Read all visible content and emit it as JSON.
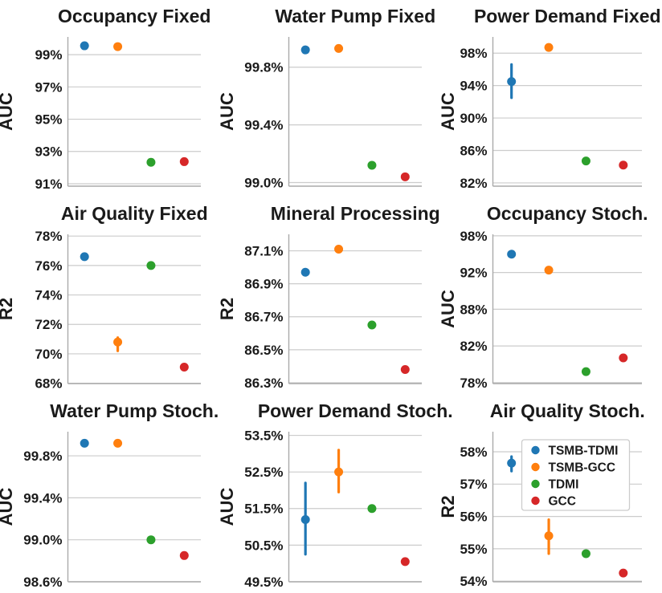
{
  "figure": {
    "background": "#ffffff",
    "text_color": "#1a1a1a",
    "grid_color": "#cccccc",
    "spine_color": "#aaaaaa"
  },
  "legend": {
    "position": "upper-right of Air Quality Stoch. subplot",
    "items": [
      {
        "label": "TSMB-TDMI",
        "color": "#1f77b4"
      },
      {
        "label": "TSMB-GCC",
        "color": "#ff7f0e"
      },
      {
        "label": "TDMI",
        "color": "#2ca02c"
      },
      {
        "label": "GCC",
        "color": "#d62728"
      }
    ]
  },
  "chart_data": [
    {
      "type": "scatter",
      "title": "Occupancy Fixed",
      "ylabel": "AUC",
      "grid": true,
      "ytick_labels": [
        "91%",
        "93%",
        "95%",
        "97%",
        "99%"
      ],
      "ytick_values": [
        91,
        93,
        95,
        97,
        99
      ],
      "ylim": [
        90.85,
        100.1
      ],
      "x_categories": [
        "TSMB-TDMI",
        "TSMB-GCC",
        "TDMI",
        "GCC"
      ],
      "series": [
        {
          "name": "TSMB-TDMI",
          "value": 99.55
        },
        {
          "name": "TSMB-GCC",
          "value": 99.5
        },
        {
          "name": "TDMI",
          "value": 92.33
        },
        {
          "name": "GCC",
          "value": 92.37
        }
      ]
    },
    {
      "type": "scatter",
      "title": "Water Pump Fixed",
      "ylabel": "AUC",
      "grid": true,
      "ytick_labels": [
        "99.0%",
        "99.4%",
        "99.8%"
      ],
      "ytick_values": [
        99.0,
        99.4,
        99.8
      ],
      "ylim": [
        98.975,
        100.01
      ],
      "x_categories": [
        "TSMB-TDMI",
        "TSMB-GCC",
        "TDMI",
        "GCC"
      ],
      "series": [
        {
          "name": "TSMB-TDMI",
          "value": 99.92
        },
        {
          "name": "TSMB-GCC",
          "value": 99.93
        },
        {
          "name": "TDMI",
          "value": 99.12
        },
        {
          "name": "GCC",
          "value": 99.04
        }
      ]
    },
    {
      "type": "scatter",
      "title": "Power Demand Fixed",
      "ylabel": "AUC",
      "grid": true,
      "ytick_labels": [
        "82%",
        "86%",
        "90%",
        "94%",
        "98%"
      ],
      "ytick_values": [
        82,
        86,
        90,
        94,
        98
      ],
      "ylim": [
        81.6,
        100.0
      ],
      "x_categories": [
        "TSMB-TDMI",
        "TSMB-GCC",
        "TDMI",
        "GCC"
      ],
      "series": [
        {
          "name": "TSMB-TDMI",
          "value": 94.5,
          "err": [
            92.5,
            96.6
          ]
        },
        {
          "name": "TSMB-GCC",
          "value": 98.7
        },
        {
          "name": "TDMI",
          "value": 84.7
        },
        {
          "name": "GCC",
          "value": 84.2
        }
      ]
    },
    {
      "type": "scatter",
      "title": "Air Quality Fixed",
      "ylabel": "R2",
      "grid": true,
      "ytick_labels": [
        "68%",
        "70%",
        "72%",
        "74%",
        "76%",
        "78%"
      ],
      "ytick_values": [
        68,
        70,
        72,
        74,
        76,
        78
      ],
      "ylim": [
        67.98,
        78.12
      ],
      "x_categories": [
        "TSMB-TDMI",
        "TSMB-GCC",
        "TDMI",
        "GCC"
      ],
      "series": [
        {
          "name": "TSMB-TDMI",
          "value": 76.6
        },
        {
          "name": "TSMB-GCC",
          "value": 70.8,
          "err": [
            70.2,
            71.1
          ]
        },
        {
          "name": "TDMI",
          "value": 76.0
        },
        {
          "name": "GCC",
          "value": 69.1
        }
      ]
    },
    {
      "type": "scatter",
      "title": "Mineral Processing",
      "ylabel": "R2",
      "grid": true,
      "ytick_labels": [
        "86.3%",
        "86.5%",
        "86.7%",
        "86.9%",
        "87.1%"
      ],
      "ytick_values": [
        86.3,
        86.5,
        86.7,
        86.9,
        87.1
      ],
      "ylim": [
        86.295,
        87.2
      ],
      "x_categories": [
        "TSMB-TDMI",
        "TSMB-GCC",
        "TDMI",
        "GCC"
      ],
      "series": [
        {
          "name": "TSMB-TDMI",
          "value": 86.97
        },
        {
          "name": "TSMB-GCC",
          "value": 87.11
        },
        {
          "name": "TDMI",
          "value": 86.65
        },
        {
          "name": "GCC",
          "value": 86.38
        }
      ]
    },
    {
      "type": "scatter",
      "title": "Occupancy Stoch.",
      "ylabel": "AUC",
      "grid": true,
      "ytick_labels": [
        "78%",
        "82%",
        "88%",
        "92%",
        "98%"
      ],
      "ytick_values": [
        78,
        82,
        88,
        92,
        98
      ],
      "ylim": [
        77.9,
        98.25
      ],
      "x_categories": [
        "TSMB-TDMI",
        "TSMB-GCC",
        "TDMI",
        "GCC"
      ],
      "series": [
        {
          "name": "TSMB-TDMI",
          "value": 95.0
        },
        {
          "name": "TSMB-GCC",
          "value": 92.4
        },
        {
          "name": "TDMI",
          "value": 79.2
        },
        {
          "name": "GCC",
          "value": 80.7
        }
      ]
    },
    {
      "type": "scatter",
      "title": "Water Pump Stoch.",
      "ylabel": "AUC",
      "grid": true,
      "ytick_labels": [
        "98.6%",
        "99.0%",
        "99.4%",
        "99.8%"
      ],
      "ytick_values": [
        98.6,
        99.0,
        99.4,
        99.8
      ],
      "ylim": [
        98.6,
        100.03
      ],
      "x_categories": [
        "TSMB-TDMI",
        "TSMB-GCC",
        "TDMI",
        "GCC"
      ],
      "series": [
        {
          "name": "TSMB-TDMI",
          "value": 99.92
        },
        {
          "name": "TSMB-GCC",
          "value": 99.92
        },
        {
          "name": "TDMI",
          "value": 99.0
        },
        {
          "name": "GCC",
          "value": 98.85
        }
      ]
    },
    {
      "type": "scatter",
      "title": "Power Demand Stoch.",
      "ylabel": "AUC",
      "grid": true,
      "ytick_labels": [
        "49.5%",
        "50.5%",
        "51.5%",
        "52.5%",
        "53.5%"
      ],
      "ytick_values": [
        49.5,
        50.5,
        51.5,
        52.5,
        53.5
      ],
      "ylim": [
        49.5,
        53.6
      ],
      "x_categories": [
        "TSMB-TDMI",
        "TSMB-GCC",
        "TDMI",
        "GCC"
      ],
      "series": [
        {
          "name": "TSMB-TDMI",
          "value": 51.2,
          "err": [
            50.25,
            52.2
          ]
        },
        {
          "name": "TSMB-GCC",
          "value": 52.5,
          "err": [
            51.95,
            53.1
          ]
        },
        {
          "name": "TDMI",
          "value": 51.5
        },
        {
          "name": "GCC",
          "value": 50.05
        }
      ]
    },
    {
      "type": "scatter",
      "title": "Air Quality Stoch.",
      "ylabel": "R2",
      "grid": true,
      "show_legend": true,
      "ytick_labels": [
        "54%",
        "55%",
        "56%",
        "57%",
        "58%"
      ],
      "ytick_values": [
        54,
        55,
        56,
        57,
        58
      ],
      "ylim": [
        53.98,
        58.62
      ],
      "x_categories": [
        "TSMB-TDMI",
        "TSMB-GCC",
        "TDMI",
        "GCC"
      ],
      "series": [
        {
          "name": "TSMB-TDMI",
          "value": 57.65,
          "err": [
            57.4,
            57.85
          ]
        },
        {
          "name": "TSMB-GCC",
          "value": 55.4,
          "err": [
            54.85,
            55.9
          ]
        },
        {
          "name": "TDMI",
          "value": 54.85
        },
        {
          "name": "GCC",
          "value": 54.25
        }
      ]
    }
  ]
}
